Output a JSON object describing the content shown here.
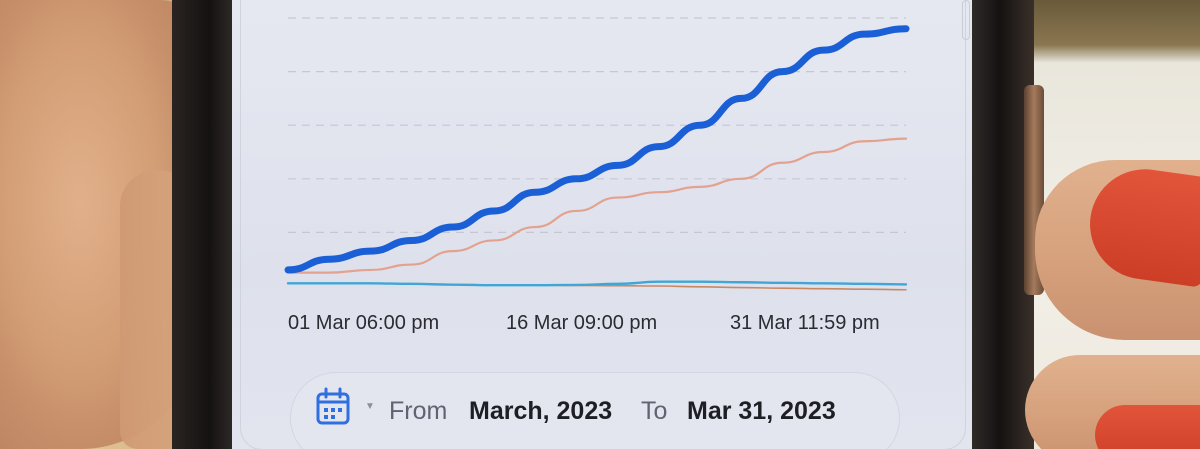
{
  "chart_data": {
    "type": "line",
    "x_tick_labels": [
      "01 Mar 06:00 pm",
      "16 Mar 09:00 pm",
      "31 Mar 11:59 pm"
    ],
    "x": [
      0,
      2,
      4,
      6,
      8,
      10,
      12,
      14,
      16,
      18,
      20,
      22,
      24,
      26,
      28,
      30
    ],
    "ylim": [
      0,
      100
    ],
    "grid": true,
    "series": [
      {
        "color": "#1a5fd6",
        "values": [
          6,
          10,
          13,
          17,
          22,
          28,
          35,
          40,
          45,
          52,
          60,
          70,
          80,
          88,
          94,
          96
        ]
      },
      {
        "color": "#e3a28f",
        "values": [
          5,
          5,
          6,
          8,
          13,
          17,
          22,
          28,
          33,
          35,
          37,
          40,
          46,
          50,
          54,
          55
        ]
      },
      {
        "color": "#3fa6d6",
        "values": [
          1,
          1,
          1,
          0.8,
          0.5,
          0.3,
          0.3,
          0.4,
          0.8,
          1.6,
          1.6,
          1.4,
          1.2,
          1.0,
          0.8,
          0.6
        ]
      },
      {
        "color": "#c98864",
        "values": [
          1,
          1,
          1,
          0.8,
          0.6,
          0.4,
          0.3,
          0.2,
          0.1,
          0,
          -0.3,
          -0.6,
          -0.8,
          -1,
          -1.2,
          -1.4
        ]
      }
    ]
  },
  "date_range": {
    "icon": "calendar-icon",
    "from_label": "From",
    "from_value": "March, 2023",
    "to_label": "To",
    "to_value": "Mar 31, 2023",
    "accent": "#2f6fe0"
  }
}
